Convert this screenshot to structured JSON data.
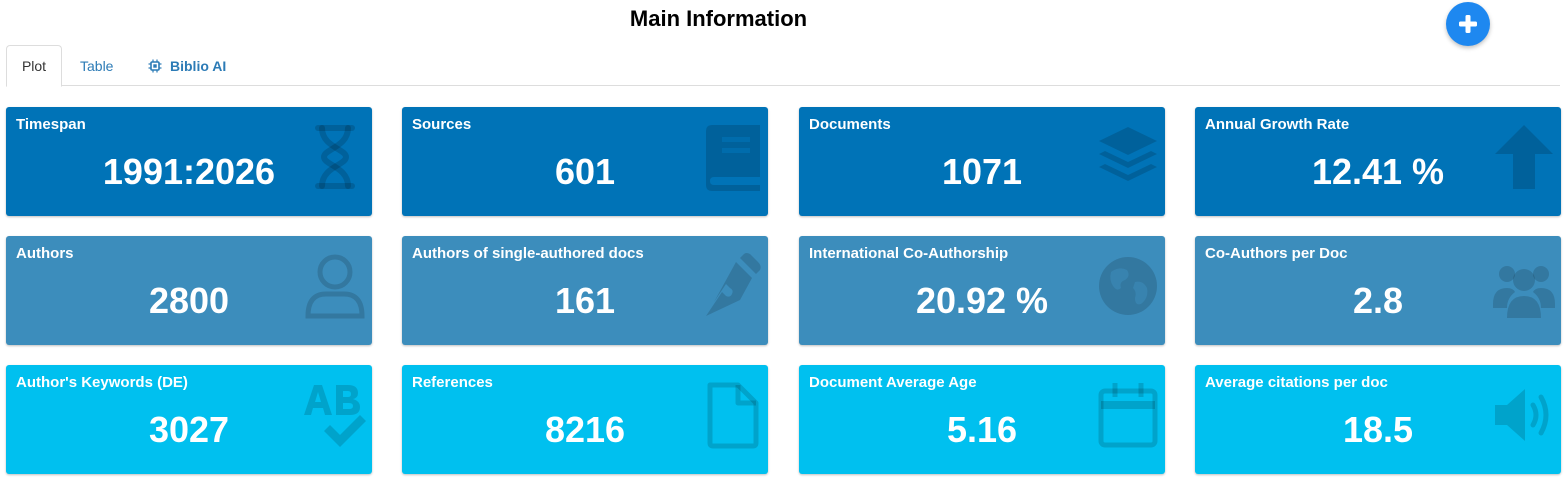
{
  "header": {
    "title": "Main Information"
  },
  "tabs": [
    {
      "label": "Plot",
      "active": true
    },
    {
      "label": "Table",
      "active": false
    },
    {
      "label": "Biblio AI",
      "active": false,
      "icon": "chip-icon"
    }
  ],
  "colors": {
    "dark": "#0073b7",
    "mid": "#3c8dbc",
    "light": "#00c0ef",
    "accent": "#1e88f0"
  },
  "cards": [
    {
      "label": "Timespan",
      "value": "1991:2026",
      "icon": "hourglass-icon"
    },
    {
      "label": "Sources",
      "value": "601",
      "icon": "book-icon"
    },
    {
      "label": "Documents",
      "value": "1071",
      "icon": "layers-icon"
    },
    {
      "label": "Annual Growth Rate",
      "value": "12.41 %",
      "icon": "arrow-up-icon"
    },
    {
      "label": "Authors",
      "value": "2800",
      "icon": "user-icon"
    },
    {
      "label": "Authors of single-authored docs",
      "value": "161",
      "icon": "pen-nib-icon"
    },
    {
      "label": "International Co-Authorship",
      "value": "20.92 %",
      "icon": "globe-icon"
    },
    {
      "label": "Co-Authors per Doc",
      "value": "2.8",
      "icon": "users-icon"
    },
    {
      "label": "Author's Keywords (DE)",
      "value": "3027",
      "icon": "spell-check-icon"
    },
    {
      "label": "References",
      "value": "8216",
      "icon": "file-icon"
    },
    {
      "label": "Document Average Age",
      "value": "5.16",
      "icon": "calendar-icon"
    },
    {
      "label": "Average citations per doc",
      "value": "18.5",
      "icon": "volume-icon"
    }
  ]
}
